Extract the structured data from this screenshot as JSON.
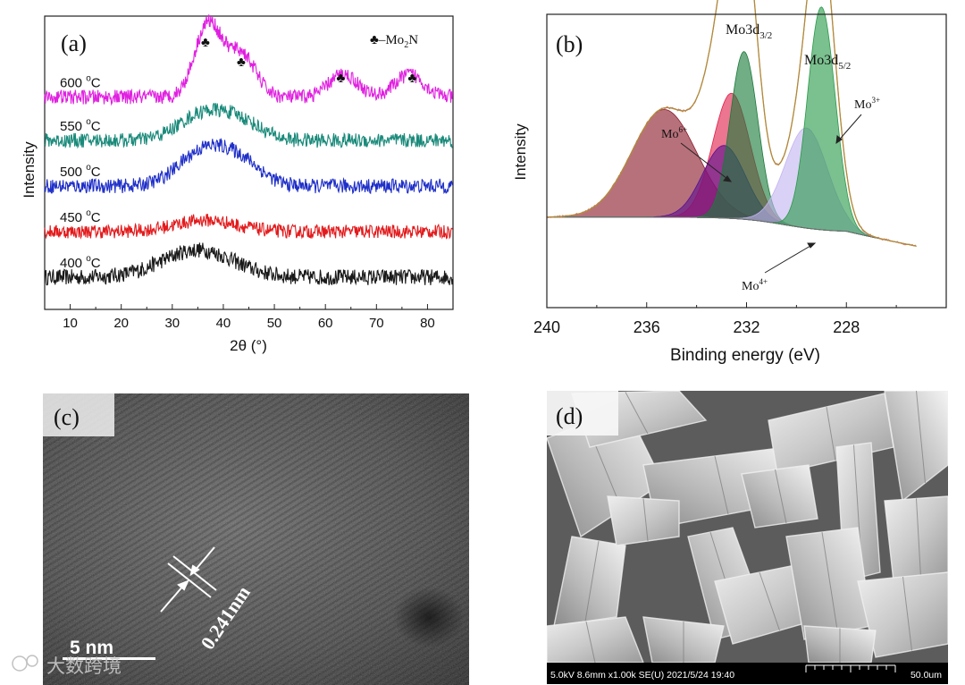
{
  "chart_data": [
    {
      "panel": "(a)",
      "type": "line",
      "xlabel": "2θ (°)",
      "ylabel": "Intensity",
      "xlim": [
        5,
        85
      ],
      "x_ticks": [
        10,
        20,
        30,
        40,
        50,
        60,
        70,
        80
      ],
      "legend": "♣–Mo2N",
      "legend_parts": {
        "symbol": "♣",
        "text": "–Mo",
        "sub": "2",
        "tail": "N"
      },
      "series": [
        {
          "name": "400 °C",
          "temp": "400",
          "unit": "C",
          "color": "#1a1a1a",
          "baseline": 0.0,
          "peaks": [
            {
              "center": 35,
              "height": 0.6,
              "width": 7
            }
          ],
          "noise": 0.35
        },
        {
          "name": "450 °C",
          "temp": "450",
          "unit": "C",
          "color": "#e31a1c",
          "baseline": 1.0,
          "peaks": [
            {
              "center": 36.5,
              "height": 0.25,
              "width": 6
            }
          ],
          "noise": 0.3
        },
        {
          "name": "500 °C",
          "temp": "500",
          "unit": "C",
          "color": "#1f2fc8",
          "baseline": 2.0,
          "peaks": [
            {
              "center": 36.5,
              "height": 0.8,
              "width": 5
            },
            {
              "center": 44,
              "height": 0.4,
              "width": 4
            }
          ],
          "noise": 0.32
        },
        {
          "name": "550 °C",
          "temp": "550",
          "unit": "C",
          "color": "#1a8a7a",
          "baseline": 3.0,
          "peaks": [
            {
              "center": 36.5,
              "height": 0.6,
              "width": 5
            },
            {
              "center": 44,
              "height": 0.3,
              "width": 4
            }
          ],
          "noise": 0.32
        },
        {
          "name": "600 °C",
          "temp": "600",
          "unit": "C",
          "color": "#e020e0",
          "baseline": 3.95,
          "peaks": [
            {
              "center": 37,
              "height": 1.6,
              "width": 2.6
            },
            {
              "center": 43.5,
              "height": 0.95,
              "width": 2.8
            },
            {
              "center": 63.5,
              "height": 0.5,
              "width": 2.8
            },
            {
              "center": 76.5,
              "height": 0.5,
              "width": 2.8
            }
          ],
          "noise": 0.32
        }
      ],
      "annotations": [
        {
          "label": "♣",
          "x": 36.5
        },
        {
          "label": "♣",
          "x": 43.5
        },
        {
          "label": "♣",
          "x": 63
        },
        {
          "label": "♣",
          "x": 77
        }
      ]
    },
    {
      "panel": "(b)",
      "type": "area",
      "xlabel": "Binding energy (eV)",
      "ylabel": "Intensity",
      "xlim": [
        240,
        224
      ],
      "x_ticks": [
        240,
        236,
        232,
        228
      ],
      "components": [
        {
          "name": "Mo6+ broad",
          "center": 235.3,
          "height": 0.43,
          "width": 1.3,
          "color": "#8b1a2a"
        },
        {
          "name": "Mo6+",
          "center": 232.6,
          "height": 0.5,
          "width": 0.75,
          "color": "#e0204a"
        },
        {
          "name": "Mo4+ 3d3/2",
          "center": 232.9,
          "height": 0.29,
          "width": 0.85,
          "color": "#5a1090"
        },
        {
          "name": "Mo3+ 3d3/2",
          "center": 232.1,
          "height": 0.67,
          "width": 0.55,
          "color": "#1a7a3a"
        },
        {
          "name": "Mo4+ 3d5/2",
          "center": 229.6,
          "height": 0.4,
          "width": 0.85,
          "color": "#c4b4f0"
        },
        {
          "name": "Mo3+ 3d5/2",
          "center": 229.0,
          "height": 0.89,
          "width": 0.55,
          "color": "#2a9a4a"
        }
      ],
      "labels": [
        {
          "text": "Mo3d",
          "sub": "3/2",
          "x": 232.3
        },
        {
          "text": "Mo3d",
          "sub": "5/2",
          "x": 229.0
        },
        {
          "text": "Mo",
          "sup": "6+"
        },
        {
          "text": "Mo",
          "sup": "3+"
        },
        {
          "text": "Mo",
          "sup": "4+"
        }
      ]
    }
  ],
  "panel_c": {
    "label": "(c)",
    "spacing": "0.241nm",
    "scale_bar": "5 nm"
  },
  "panel_d": {
    "label": "(d)",
    "info_bar": "5.0kV 8.6mm x1.00k SE(U) 2021/5/24 19:40",
    "scale": "50.0um"
  },
  "watermark": "大数跨境"
}
